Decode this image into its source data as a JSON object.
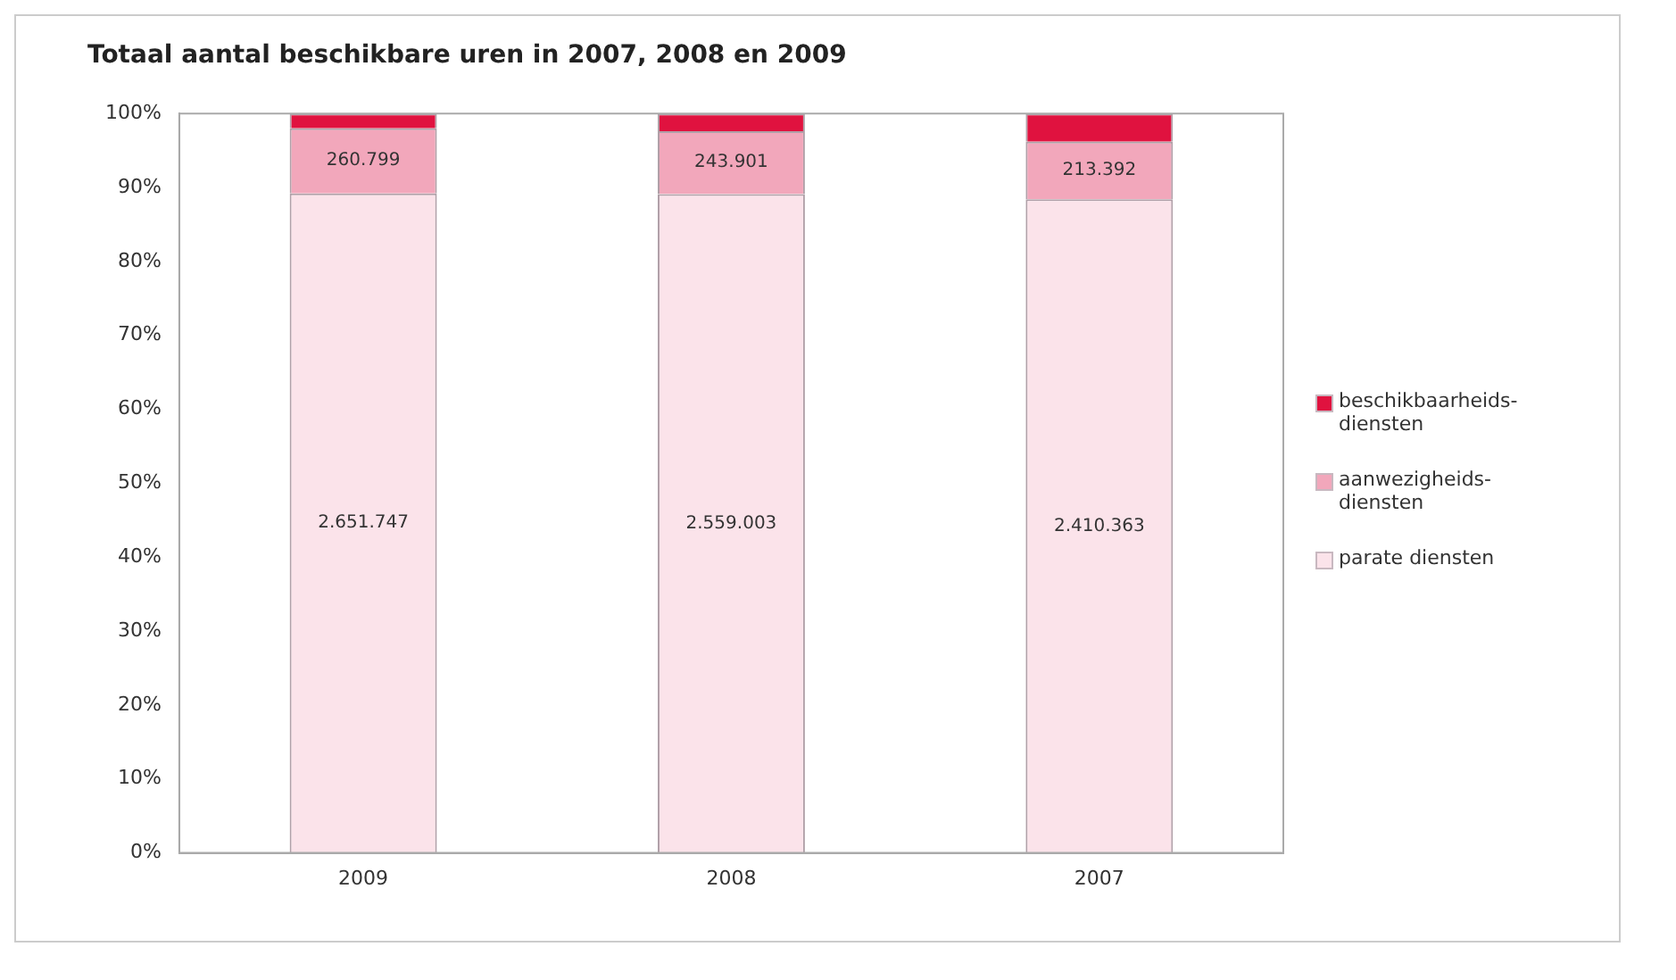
{
  "chart_data": {
    "type": "bar",
    "title": "Totaal aantal beschikbare uren in 2007, 2008 en 2009",
    "categories": [
      "2009",
      "2008",
      "2007"
    ],
    "stacked": true,
    "series": [
      {
        "name": "parate diensten",
        "color": "#fbe3ea",
        "values": [
          89.2,
          89.1,
          88.4
        ]
      },
      {
        "name": "aanwezigheids-diensten",
        "color": "#f2a7bb",
        "values": [
          8.8,
          8.5,
          7.8
        ]
      },
      {
        "name": "beschikbaarheids-diensten",
        "color": "#e0123f",
        "values": [
          2.0,
          2.4,
          3.8
        ]
      }
    ],
    "ylim": [
      0,
      100
    ],
    "yticks": [
      {
        "value": 0,
        "label": "0%"
      },
      {
        "value": 10,
        "label": "10%"
      },
      {
        "value": 20,
        "label": "20%"
      },
      {
        "value": 30,
        "label": "30%"
      },
      {
        "value": 40,
        "label": "40%"
      },
      {
        "value": 50,
        "label": "50%"
      },
      {
        "value": 60,
        "label": "60%"
      },
      {
        "value": 70,
        "label": "70%"
      },
      {
        "value": 80,
        "label": "80%"
      },
      {
        "value": 90,
        "label": "90%"
      },
      {
        "value": 100,
        "label": "100%"
      }
    ],
    "annotations": [
      "2.651.747",
      "2.559.003",
      "2.410.363",
      "260.799",
      "243.901",
      "213.392"
    ],
    "grid": false,
    "legend": "right"
  }
}
